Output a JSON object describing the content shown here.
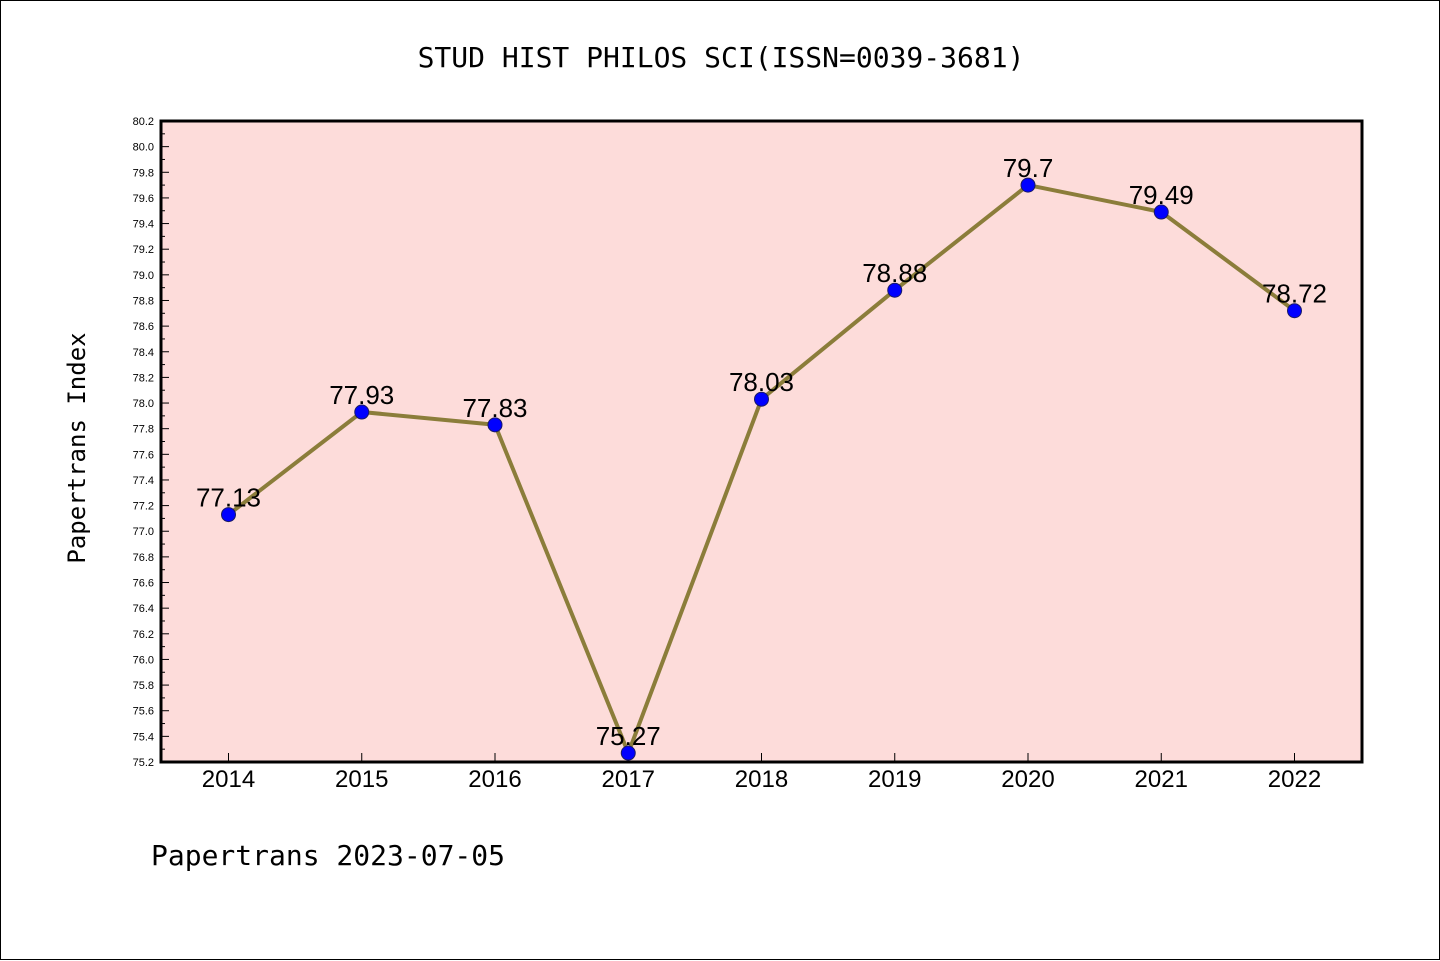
{
  "chart_data": {
    "type": "line",
    "title": "STUD HIST PHILOS SCI(ISSN=0039-3681)",
    "ylabel": "Papertrans Index",
    "xlabel": "",
    "footer": "Papertrans 2023-07-05",
    "categories": [
      "2014",
      "2015",
      "2016",
      "2017",
      "2018",
      "2019",
      "2020",
      "2021",
      "2022"
    ],
    "series": [
      {
        "values": [
          77.13,
          77.93,
          77.83,
          75.27,
          78.03,
          78.88,
          79.7,
          79.49,
          78.72
        ],
        "labels": [
          "77.13",
          "77.93",
          "77.83",
          "75.27",
          "78.03",
          "78.88",
          "79.7",
          "79.49",
          "78.72"
        ],
        "line_color": "#8b7d3a",
        "marker_color": "#0000ff"
      }
    ],
    "ylim": [
      75.2,
      80.2
    ],
    "yticks": [
      "75.2",
      "75.4",
      "75.6",
      "75.8",
      "76.0",
      "76.2",
      "76.4",
      "76.6",
      "76.8",
      "77.0",
      "77.2",
      "77.4",
      "77.6",
      "77.8",
      "78.0",
      "78.2",
      "78.4",
      "78.6",
      "78.8",
      "79.0",
      "79.2",
      "79.4",
      "79.6",
      "79.8",
      "80.0",
      "80.2"
    ],
    "plot_background": "#fddcda",
    "grid": false
  }
}
